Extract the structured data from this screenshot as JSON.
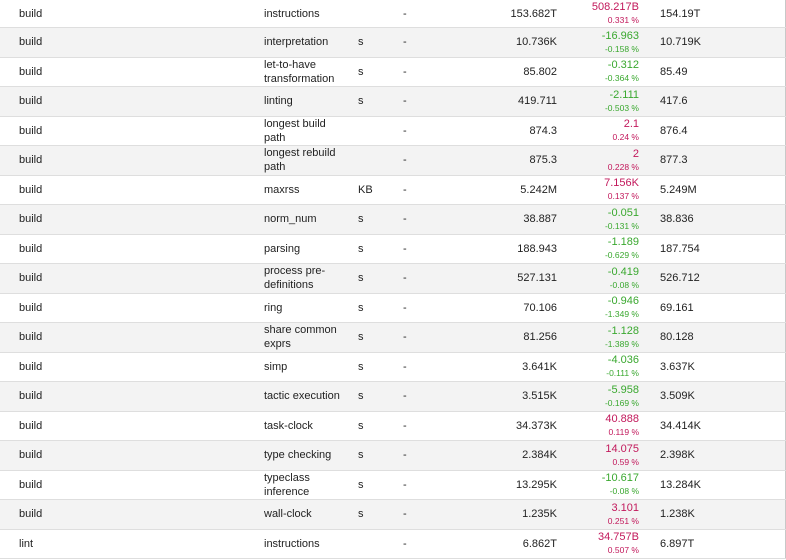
{
  "rows": [
    {
      "bench": "build",
      "metric": "instructions",
      "unit": "",
      "dash": "-",
      "old": "153.682T",
      "delta": "508.217B",
      "pct": "0.331 %",
      "new": "154.19T",
      "dir": "pos"
    },
    {
      "bench": "build",
      "metric": "interpretation",
      "unit": "s",
      "dash": "-",
      "old": "10.736K",
      "delta": "-16.963",
      "pct": "-0.158 %",
      "new": "10.719K",
      "dir": "neg"
    },
    {
      "bench": "build",
      "metric": "let-to-have transformation",
      "unit": "s",
      "dash": "-",
      "old": "85.802",
      "delta": "-0.312",
      "pct": "-0.364 %",
      "new": "85.49",
      "dir": "neg"
    },
    {
      "bench": "build",
      "metric": "linting",
      "unit": "s",
      "dash": "-",
      "old": "419.711",
      "delta": "-2.111",
      "pct": "-0.503 %",
      "new": "417.6",
      "dir": "neg"
    },
    {
      "bench": "build",
      "metric": "longest build path",
      "unit": "",
      "dash": "-",
      "old": "874.3",
      "delta": "2.1",
      "pct": "0.24 %",
      "new": "876.4",
      "dir": "pos"
    },
    {
      "bench": "build",
      "metric": "longest rebuild path",
      "unit": "",
      "dash": "-",
      "old": "875.3",
      "delta": "2",
      "pct": "0.228 %",
      "new": "877.3",
      "dir": "pos"
    },
    {
      "bench": "build",
      "metric": "maxrss",
      "unit": "KB",
      "dash": "-",
      "old": "5.242M",
      "delta": "7.156K",
      "pct": "0.137 %",
      "new": "5.249M",
      "dir": "pos"
    },
    {
      "bench": "build",
      "metric": "norm_num",
      "unit": "s",
      "dash": "-",
      "old": "38.887",
      "delta": "-0.051",
      "pct": "-0.131 %",
      "new": "38.836",
      "dir": "neg"
    },
    {
      "bench": "build",
      "metric": "parsing",
      "unit": "s",
      "dash": "-",
      "old": "188.943",
      "delta": "-1.189",
      "pct": "-0.629 %",
      "new": "187.754",
      "dir": "neg"
    },
    {
      "bench": "build",
      "metric": "process pre-definitions",
      "unit": "s",
      "dash": "-",
      "old": "527.131",
      "delta": "-0.419",
      "pct": "-0.08 %",
      "new": "526.712",
      "dir": "neg"
    },
    {
      "bench": "build",
      "metric": "ring",
      "unit": "s",
      "dash": "-",
      "old": "70.106",
      "delta": "-0.946",
      "pct": "-1.349 %",
      "new": "69.161",
      "dir": "neg"
    },
    {
      "bench": "build",
      "metric": "share common exprs",
      "unit": "s",
      "dash": "-",
      "old": "81.256",
      "delta": "-1.128",
      "pct": "-1.389 %",
      "new": "80.128",
      "dir": "neg"
    },
    {
      "bench": "build",
      "metric": "simp",
      "unit": "s",
      "dash": "-",
      "old": "3.641K",
      "delta": "-4.036",
      "pct": "-0.111 %",
      "new": "3.637K",
      "dir": "neg"
    },
    {
      "bench": "build",
      "metric": "tactic execution",
      "unit": "s",
      "dash": "-",
      "old": "3.515K",
      "delta": "-5.958",
      "pct": "-0.169 %",
      "new": "3.509K",
      "dir": "neg"
    },
    {
      "bench": "build",
      "metric": "task-clock",
      "unit": "s",
      "dash": "-",
      "old": "34.373K",
      "delta": "40.888",
      "pct": "0.119 %",
      "new": "34.414K",
      "dir": "pos"
    },
    {
      "bench": "build",
      "metric": "type checking",
      "unit": "s",
      "dash": "-",
      "old": "2.384K",
      "delta": "14.075",
      "pct": "0.59 %",
      "new": "2.398K",
      "dir": "pos"
    },
    {
      "bench": "build",
      "metric": "typeclass inference",
      "unit": "s",
      "dash": "-",
      "old": "13.295K",
      "delta": "-10.617",
      "pct": "-0.08 %",
      "new": "13.284K",
      "dir": "neg"
    },
    {
      "bench": "build",
      "metric": "wall-clock",
      "unit": "s",
      "dash": "-",
      "old": "1.235K",
      "delta": "3.101",
      "pct": "0.251 %",
      "new": "1.238K",
      "dir": "pos"
    },
    {
      "bench": "lint",
      "metric": "instructions",
      "unit": "",
      "dash": "-",
      "old": "6.862T",
      "delta": "34.757B",
      "pct": "0.507 %",
      "new": "6.897T",
      "dir": "pos"
    }
  ]
}
